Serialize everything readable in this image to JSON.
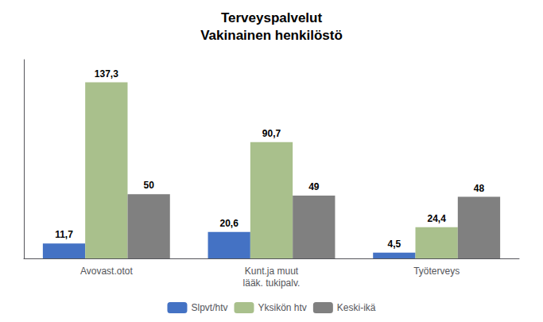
{
  "chart_data": {
    "type": "bar",
    "title": "Terveyspalvelut\nVakinainen henkilöstö",
    "categories": [
      "Avovast.otot",
      "Kunt.ja muut\nlääk. tukipalv.",
      "Työterveys"
    ],
    "series": [
      {
        "name": "Slpvt/htv",
        "color": "#4472c4",
        "values": [
          11.7,
          20.6,
          4.5
        ],
        "value_labels": [
          "11,7",
          "20,6",
          "4,5"
        ]
      },
      {
        "name": "Yksikön htv",
        "color": "#a9c08c",
        "values": [
          137.3,
          90.7,
          24.4
        ],
        "value_labels": [
          "137,3",
          "90,7",
          "24,4"
        ]
      },
      {
        "name": "Keski-ikä",
        "color": "#808080",
        "values": [
          50,
          49,
          48
        ],
        "value_labels": [
          "50",
          "49",
          "48"
        ]
      }
    ],
    "ylim": [
      0,
      155
    ],
    "yticks": [],
    "grid": false,
    "data_labels": true,
    "tick_labels": "x",
    "legend": "bottom"
  }
}
